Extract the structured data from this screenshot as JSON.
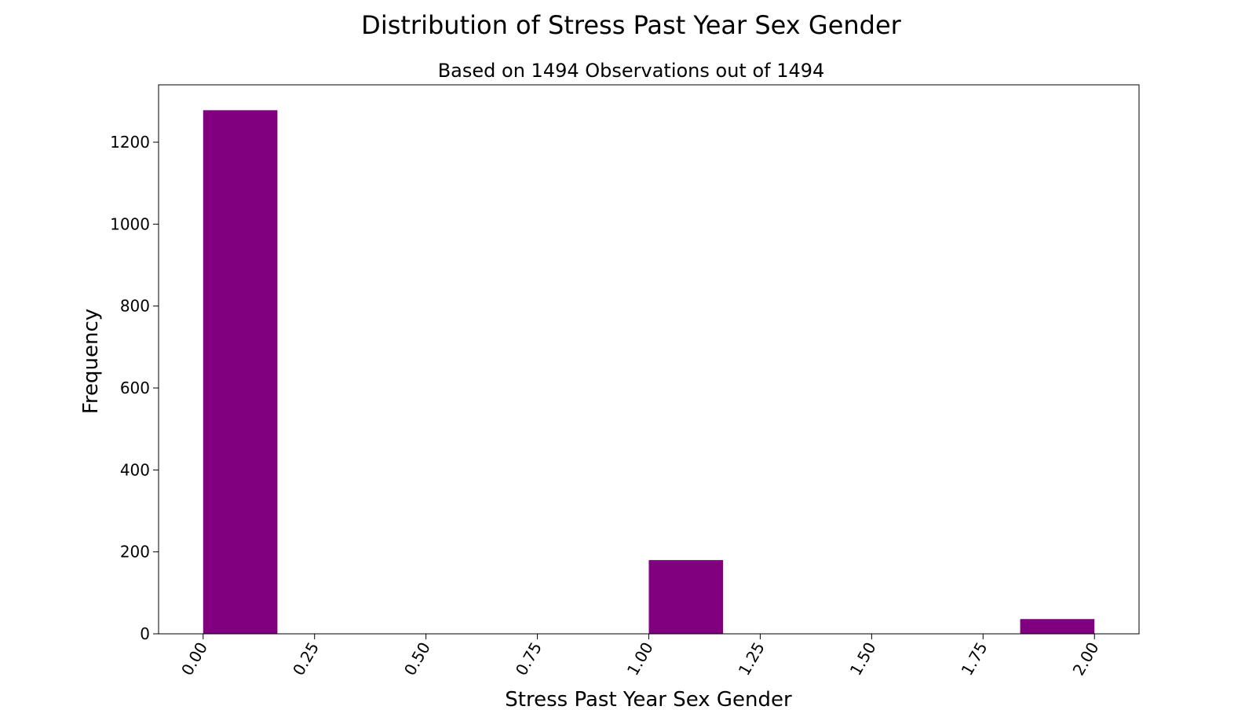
{
  "chart_data": {
    "type": "bar",
    "title": "Distribution of Stress Past Year Sex Gender",
    "subtitle": "Based on 1494 Observations out of 1494",
    "xlabel": "Stress Past Year Sex Gender",
    "ylabel": "Frequency",
    "xlim": [
      -0.1,
      2.1
    ],
    "ylim": [
      0,
      1340
    ],
    "x_ticks": [
      0.0,
      0.25,
      0.5,
      0.75,
      1.0,
      1.25,
      1.5,
      1.75,
      2.0
    ],
    "x_tick_labels": [
      "0.00",
      "0.25",
      "0.50",
      "0.75",
      "1.00",
      "1.25",
      "1.50",
      "1.75",
      "2.00"
    ],
    "y_ticks": [
      0,
      200,
      400,
      600,
      800,
      1000,
      1200
    ],
    "y_tick_labels": [
      "0",
      "200",
      "400",
      "600",
      "800",
      "1000",
      "1200"
    ],
    "bins": [
      {
        "start": 0.0,
        "end": 0.1667,
        "count": 1278
      },
      {
        "start": 1.0,
        "end": 1.1667,
        "count": 180
      },
      {
        "start": 1.8333,
        "end": 2.0,
        "count": 36
      }
    ],
    "bar_color": "#800080",
    "grid": false,
    "legend": "none"
  }
}
